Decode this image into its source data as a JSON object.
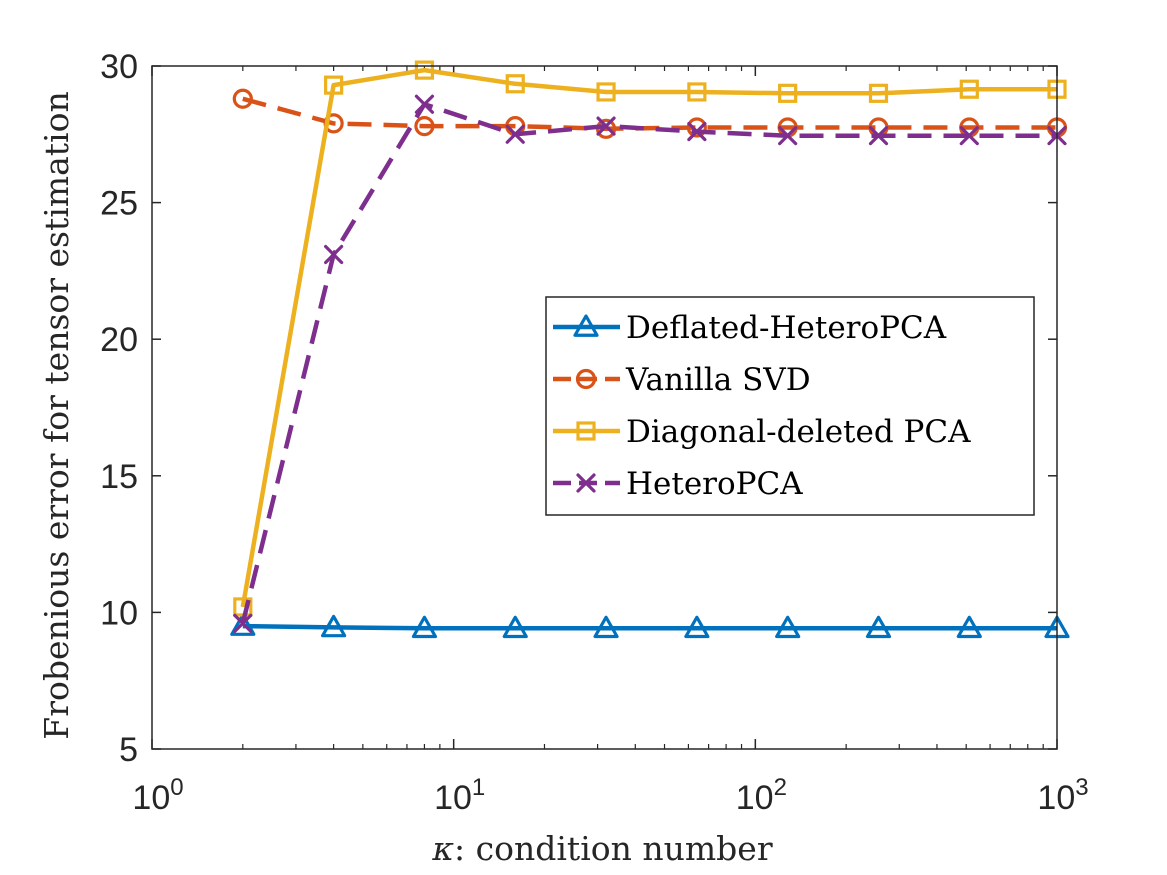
{
  "chart_data": {
    "type": "line",
    "xscale": "log",
    "xlabel_symbol": "κ",
    "xlabel_text": ": condition number",
    "ylabel": "Frobenious error for tensor estimation",
    "xlim": [
      1,
      1000
    ],
    "ylim": [
      5,
      30
    ],
    "x_ticks": [
      {
        "value": 1,
        "base": "10",
        "exp": "0"
      },
      {
        "value": 10,
        "base": "10",
        "exp": "1"
      },
      {
        "value": 100,
        "base": "10",
        "exp": "2"
      },
      {
        "value": 1000,
        "base": "10",
        "exp": "3"
      }
    ],
    "y_ticks": [
      "5",
      "10",
      "15",
      "20",
      "25",
      "30"
    ],
    "x": [
      2,
      4,
      8,
      16,
      32,
      64,
      128,
      256,
      512,
      1024
    ],
    "legend_position": "center-right",
    "series": [
      {
        "name": "Deflated-HeteroPCA",
        "color": "#0072BD",
        "marker": "triangle",
        "dash": "solid",
        "values": [
          9.5,
          9.45,
          9.42,
          9.42,
          9.42,
          9.42,
          9.42,
          9.42,
          9.42,
          9.42
        ]
      },
      {
        "name": "Vanilla SVD",
        "color": "#D95319",
        "marker": "circle",
        "dash": "dashed",
        "values": [
          28.8,
          27.9,
          27.8,
          27.8,
          27.7,
          27.75,
          27.75,
          27.75,
          27.75,
          27.75
        ]
      },
      {
        "name": "Diagonal-deleted PCA",
        "color": "#EDB120",
        "marker": "square",
        "dash": "solid",
        "values": [
          10.2,
          29.3,
          29.85,
          29.35,
          29.05,
          29.05,
          29.0,
          29.0,
          29.15,
          29.15
        ]
      },
      {
        "name": "HeteroPCA",
        "color": "#7E2F8E",
        "marker": "x",
        "dash": "dashed",
        "values": [
          9.6,
          23.1,
          28.6,
          27.5,
          27.8,
          27.6,
          27.45,
          27.45,
          27.45,
          27.45
        ]
      }
    ]
  }
}
